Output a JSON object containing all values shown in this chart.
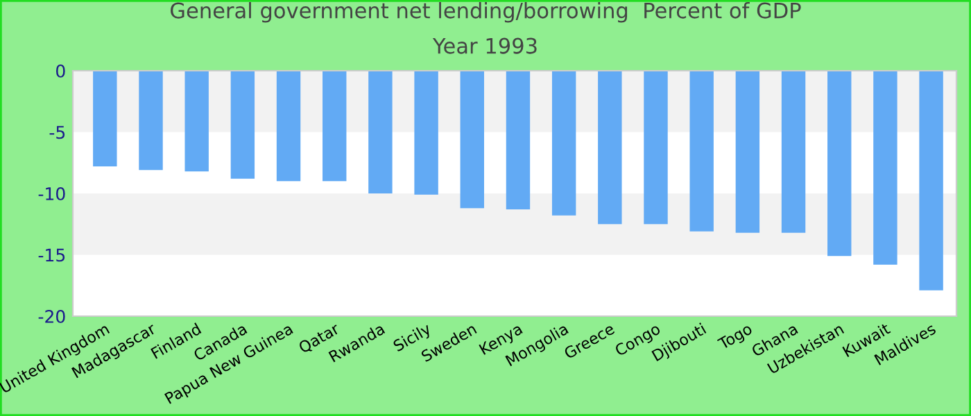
{
  "chart_data": {
    "type": "bar",
    "title": "General government net lending/borrowing  Percent of GDP",
    "subtitle": "Year 1993",
    "categories": [
      "United Kingdom",
      "Madagascar",
      "Finland",
      "Canada",
      "Papua New Guinea",
      "Qatar",
      "Rwanda",
      "Sicily",
      "Sweden",
      "Kenya",
      "Mongolia",
      "Greece",
      "Congo",
      "Djibouti",
      "Togo",
      "Ghana",
      "Uzbekistan",
      "Kuwait",
      "Maldives"
    ],
    "series": [
      {
        "color": "#62aaf4",
        "values": [
          -7.8,
          -8.1,
          -8.2,
          -8.8,
          -9.0,
          -9.0,
          -10.0,
          -10.1,
          -11.2,
          -11.3,
          -11.8,
          -12.5,
          -12.5,
          -13.1,
          -13.2,
          -13.2,
          -15.1,
          -15.8,
          -17.9
        ]
      }
    ],
    "ylim": [
      -20,
      0
    ],
    "yticks": [
      0,
      -5,
      -10,
      -15,
      -20
    ],
    "bands": [
      {
        "axis": "y",
        "from": 0,
        "to": -5,
        "color": "#f2f2f2"
      },
      {
        "axis": "y",
        "from": -10,
        "to": -15,
        "color": "#f2f2f2"
      }
    ],
    "grid": false,
    "legend": false
  }
}
